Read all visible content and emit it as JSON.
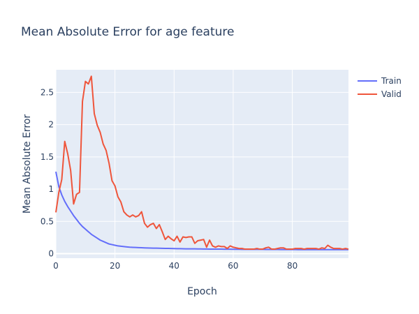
{
  "chart_data": {
    "type": "line",
    "title": "Mean Absolute Error for age feature",
    "xlabel": "Epoch",
    "ylabel": "Mean Absolute Error",
    "xlim": [
      0,
      99
    ],
    "ylim": [
      -0.07,
      2.85
    ],
    "xticks": [
      0,
      20,
      40,
      60,
      80
    ],
    "yticks": [
      0,
      0.5,
      1,
      1.5,
      2,
      2.5
    ],
    "ytick_labels": [
      "0",
      "0.5",
      "1",
      "1.5",
      "2",
      "2.5"
    ],
    "grid": true,
    "legend_position": "top-right",
    "colors": {
      "plot_bg": "#E5ECF6",
      "grid": "#ffffff",
      "text": "#2a3f5f"
    },
    "series": [
      {
        "name": "Train",
        "color": "#636EFA",
        "values": [
          1.27,
          1.04,
          0.91,
          0.81,
          0.73,
          0.66,
          0.59,
          0.53,
          0.47,
          0.42,
          0.38,
          0.34,
          0.3,
          0.27,
          0.24,
          0.21,
          0.19,
          0.17,
          0.15,
          0.14,
          0.13,
          0.12,
          0.115,
          0.11,
          0.105,
          0.1,
          0.098,
          0.096,
          0.094,
          0.092,
          0.09,
          0.088,
          0.087,
          0.086,
          0.085,
          0.084,
          0.083,
          0.082,
          0.081,
          0.08,
          0.079,
          0.078,
          0.077,
          0.076,
          0.075,
          0.075,
          0.074,
          0.074,
          0.073,
          0.073,
          0.072,
          0.072,
          0.071,
          0.071,
          0.07,
          0.07,
          0.07,
          0.069,
          0.069,
          0.069,
          0.068,
          0.068,
          0.068,
          0.067,
          0.067,
          0.067,
          0.067,
          0.066,
          0.066,
          0.066,
          0.066,
          0.065,
          0.065,
          0.065,
          0.065,
          0.065,
          0.064,
          0.064,
          0.064,
          0.064,
          0.064,
          0.064,
          0.063,
          0.063,
          0.063,
          0.063,
          0.063,
          0.063,
          0.063,
          0.062,
          0.062,
          0.062,
          0.062,
          0.062,
          0.062,
          0.062,
          0.062,
          0.062,
          0.062,
          0.062
        ]
      },
      {
        "name": "Valid",
        "color": "#EF553B",
        "values": [
          0.64,
          0.95,
          1.15,
          1.74,
          1.55,
          1.29,
          0.77,
          0.92,
          0.95,
          2.36,
          2.67,
          2.63,
          2.75,
          2.17,
          1.99,
          1.88,
          1.7,
          1.6,
          1.4,
          1.13,
          1.05,
          0.88,
          0.8,
          0.65,
          0.6,
          0.57,
          0.6,
          0.57,
          0.59,
          0.65,
          0.47,
          0.41,
          0.45,
          0.47,
          0.39,
          0.45,
          0.34,
          0.22,
          0.27,
          0.23,
          0.2,
          0.27,
          0.18,
          0.26,
          0.25,
          0.26,
          0.26,
          0.16,
          0.2,
          0.21,
          0.22,
          0.1,
          0.21,
          0.12,
          0.1,
          0.12,
          0.11,
          0.11,
          0.08,
          0.12,
          0.1,
          0.09,
          0.08,
          0.08,
          0.07,
          0.07,
          0.07,
          0.07,
          0.08,
          0.07,
          0.07,
          0.09,
          0.1,
          0.07,
          0.07,
          0.08,
          0.09,
          0.09,
          0.07,
          0.07,
          0.07,
          0.08,
          0.08,
          0.08,
          0.07,
          0.08,
          0.08,
          0.08,
          0.08,
          0.07,
          0.09,
          0.08,
          0.13,
          0.1,
          0.08,
          0.08,
          0.08,
          0.07,
          0.08,
          0.07
        ]
      }
    ]
  }
}
